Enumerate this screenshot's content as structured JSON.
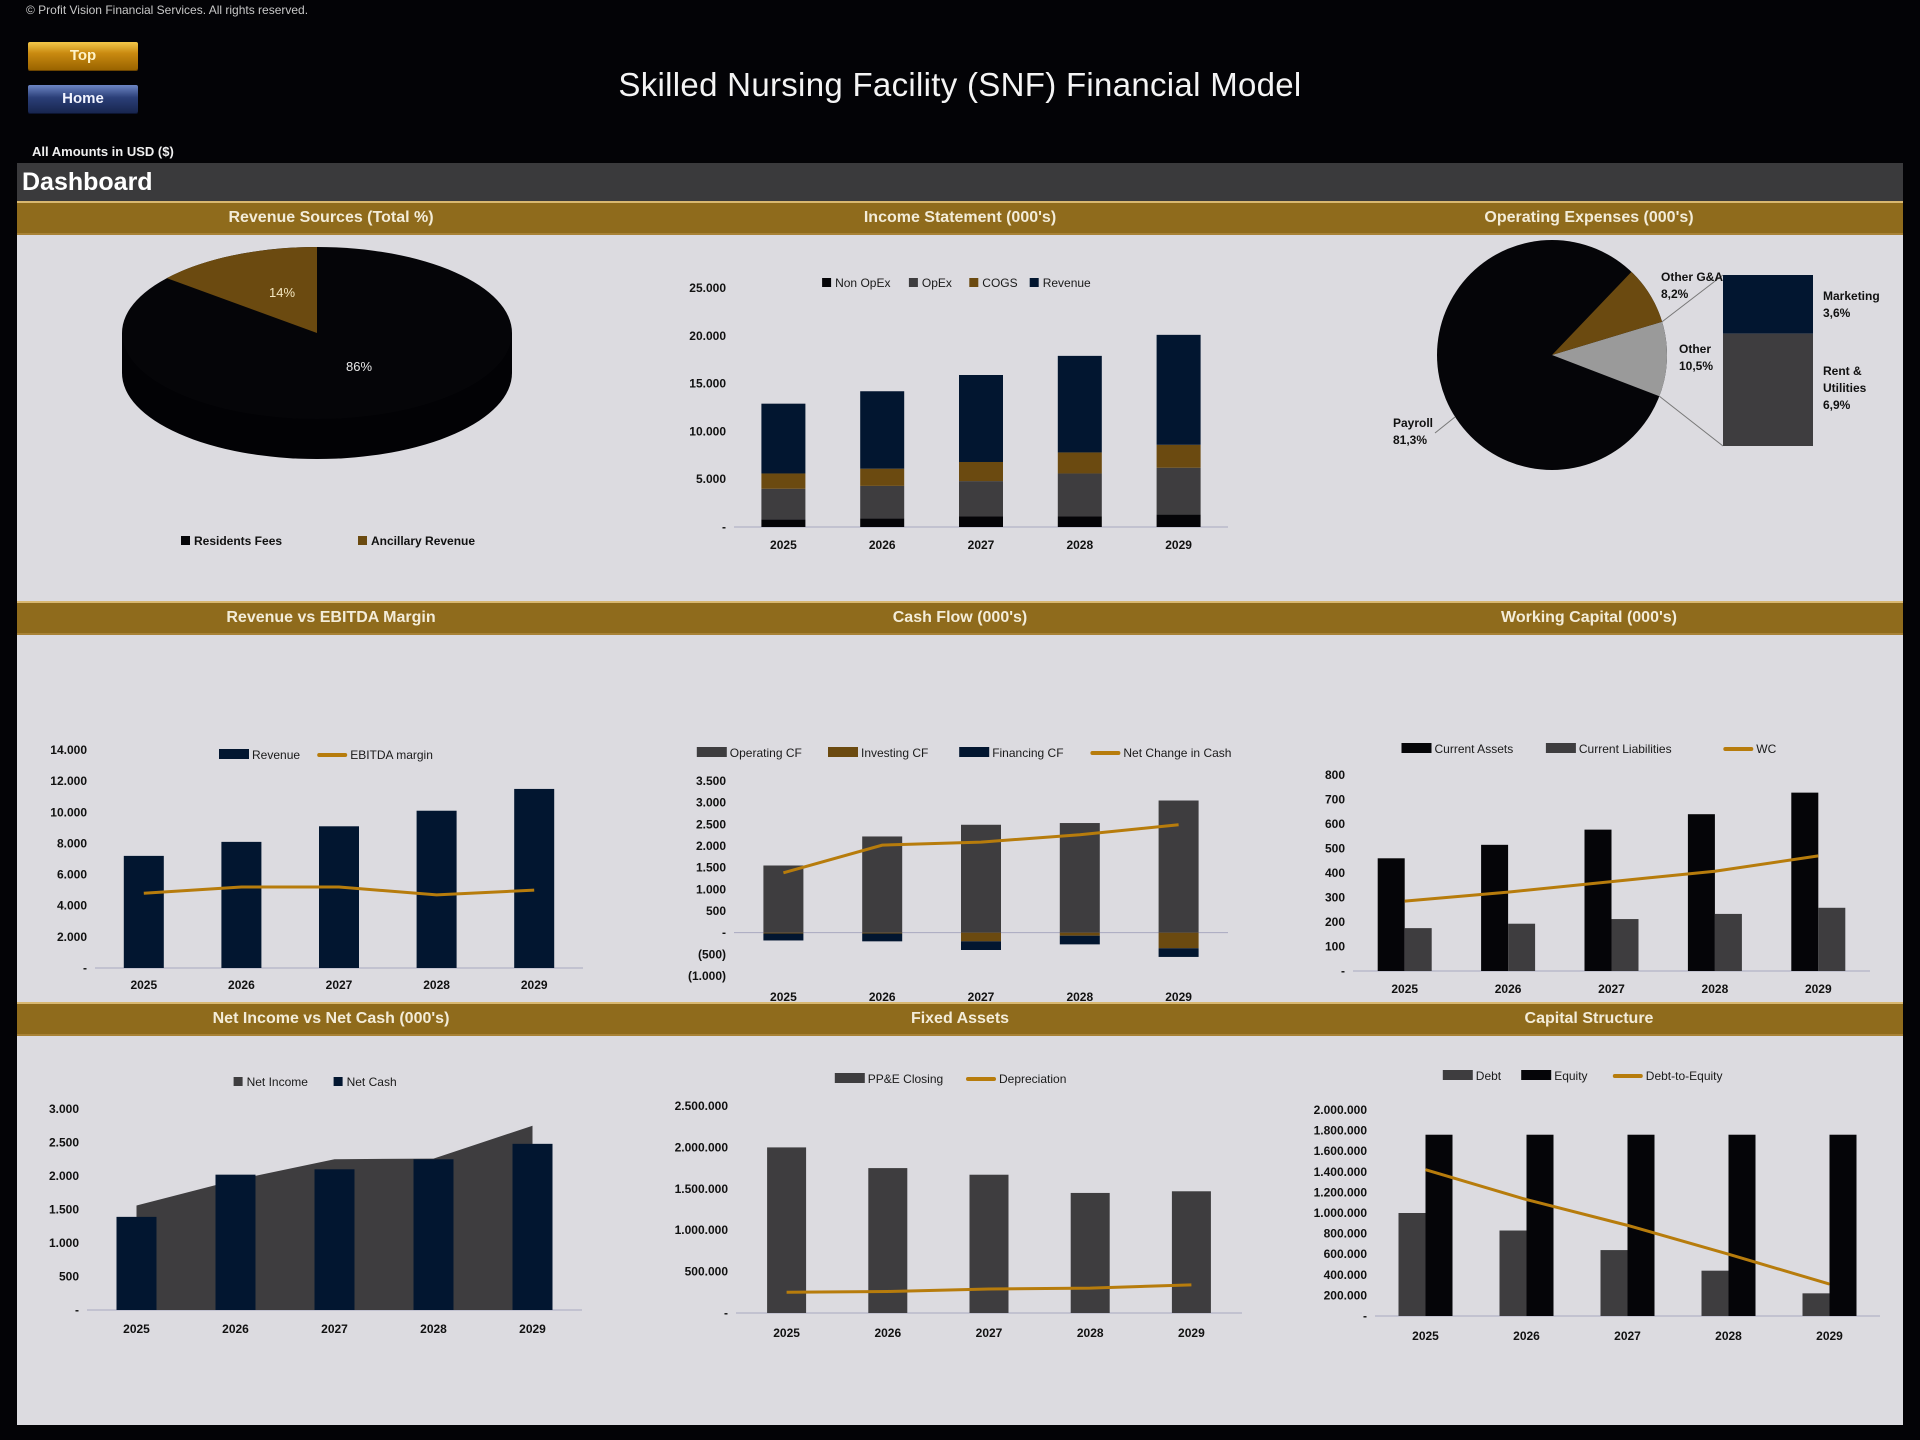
{
  "header": {
    "copyright": "© Profit Vision Financial Services. All rights reserved.",
    "title": "Skilled Nursing Facility (SNF) Financial Model",
    "units": "All Amounts in  USD ($)",
    "buttons": {
      "top": "Top",
      "home": "Home"
    },
    "section": "Dashboard"
  },
  "colors": {
    "gold_band": "#8f6b1c",
    "black": "#050508",
    "navy": "#021630",
    "dark_gray": "#3e3d3f",
    "brown": "#6b4a10",
    "gold_line": "#b77c0c",
    "light_gray": "#9a9a9a",
    "panel_bg": "#dcdbe0"
  },
  "bands": [
    [
      "Revenue Sources (Total %)",
      "Income Statement (000's)",
      "Operating Expenses (000's)"
    ],
    [
      "Revenue vs EBITDA Margin",
      "Cash Flow (000's)",
      "Working Capital (000's)"
    ],
    [
      "Net Income vs Net Cash (000's)",
      "Fixed Assets",
      "Capital Structure"
    ]
  ],
  "chart_data": [
    {
      "id": "revenue_sources",
      "type": "pie",
      "title": "Revenue Sources (Total %)",
      "categories": [
        "Residents Fees",
        "Ancillary Revenue"
      ],
      "values": [
        86,
        14
      ],
      "labels": [
        "86%",
        "14%"
      ],
      "legend": [
        "Residents Fees",
        "Ancillary Revenue"
      ],
      "legend_position": "bottom"
    },
    {
      "id": "income_statement",
      "type": "bar",
      "stacked": true,
      "title": "Income Statement (000's)",
      "categories": [
        "2025",
        "2026",
        "2027",
        "2028",
        "2029"
      ],
      "series": [
        {
          "name": "Non OpEx",
          "values": [
            800,
            900,
            1100,
            1100,
            1300
          ]
        },
        {
          "name": "OpEx",
          "values": [
            3200,
            3400,
            3700,
            4500,
            4900
          ]
        },
        {
          "name": "COGS",
          "values": [
            1600,
            1800,
            2000,
            2200,
            2400
          ]
        },
        {
          "name": "Revenue",
          "values": [
            7300,
            8100,
            9100,
            10100,
            11500
          ]
        }
      ],
      "yticks": [
        "-",
        "5.000",
        "10.000",
        "15.000",
        "20.000",
        "25.000"
      ],
      "ylim": [
        0,
        25000
      ],
      "legend_position": "top"
    },
    {
      "id": "operating_expenses",
      "type": "pie",
      "subtype": "bar-of-pie",
      "title": "Operating Expenses (000's)",
      "categories": [
        "Payroll",
        "Other G&A",
        "Other"
      ],
      "values": [
        81.3,
        8.2,
        10.5
      ],
      "labels": [
        "Payroll\n81,3%",
        "Other G&A\n8,2%",
        "Other\n10,5%"
      ],
      "breakdown": {
        "categories": [
          "Marketing",
          "Rent & Utilities"
        ],
        "values": [
          3.6,
          6.9
        ],
        "labels": [
          "Marketing\n3,6%",
          "Rent &\nUtilities\n6,9%"
        ]
      }
    },
    {
      "id": "revenue_vs_ebitda",
      "type": "bar",
      "title": "Revenue vs EBITDA Margin",
      "categories": [
        "2025",
        "2026",
        "2027",
        "2028",
        "2029"
      ],
      "series": [
        {
          "name": "Revenue",
          "type": "bar",
          "values": [
            7200,
            8100,
            9100,
            10100,
            11500
          ]
        },
        {
          "name": "EBITDA margin",
          "type": "line",
          "values": [
            4800,
            5200,
            5200,
            4700,
            5000
          ]
        }
      ],
      "yticks": [
        "-",
        "2.000",
        "4.000",
        "6.000",
        "8.000",
        "10.000",
        "12.000",
        "14.000"
      ],
      "ylim": [
        0,
        14000
      ],
      "legend_position": "top"
    },
    {
      "id": "cash_flow",
      "type": "bar",
      "stacked": true,
      "title": "Cash Flow (000's)",
      "categories": [
        "2025",
        "2026",
        "2027",
        "2028",
        "2029"
      ],
      "series": [
        {
          "name": "Operating CF",
          "values": [
            1550,
            2220,
            2490,
            2530,
            3050
          ]
        },
        {
          "name": "Investing CF",
          "values": [
            -20,
            -20,
            -200,
            -70,
            -360
          ]
        },
        {
          "name": "Financing CF",
          "values": [
            -160,
            -180,
            -200,
            -200,
            -200
          ]
        },
        {
          "name": "Net Change in Cash",
          "type": "line",
          "values": [
            1380,
            2020,
            2090,
            2260,
            2490
          ]
        }
      ],
      "yticks": [
        "(1.000)",
        "(500)",
        "-",
        "500",
        "1.000",
        "1.500",
        "2.000",
        "2.500",
        "3.000",
        "3.500"
      ],
      "ylim": [
        -1000,
        3500
      ],
      "legend_position": "top"
    },
    {
      "id": "working_capital",
      "type": "bar",
      "title": "Working Capital (000's)",
      "categories": [
        "2025",
        "2026",
        "2027",
        "2028",
        "2029"
      ],
      "series": [
        {
          "name": "Current Assets",
          "values": [
            460,
            515,
            577,
            640,
            728
          ]
        },
        {
          "name": "Current Liabilities",
          "values": [
            175,
            193,
            212,
            233,
            258
          ]
        },
        {
          "name": "WC",
          "type": "line",
          "values": [
            285,
            322,
            365,
            407,
            470
          ]
        }
      ],
      "yticks": [
        "-",
        "100",
        "200",
        "300",
        "400",
        "500",
        "600",
        "700",
        "800"
      ],
      "ylim": [
        0,
        800
      ],
      "legend_position": "top"
    },
    {
      "id": "net_income_vs_cash",
      "type": "bar",
      "title": "Net Income vs Net Cash (000's)",
      "categories": [
        "2025",
        "2026",
        "2027",
        "2028",
        "2029"
      ],
      "series": [
        {
          "name": "Net Income",
          "type": "area",
          "values": [
            1560,
            1940,
            2250,
            2260,
            2750
          ]
        },
        {
          "name": "Net Cash",
          "type": "bar",
          "values": [
            1390,
            2020,
            2100,
            2250,
            2480
          ]
        }
      ],
      "yticks": [
        "-",
        "500",
        "1.000",
        "1.500",
        "2.000",
        "2.500",
        "3.000"
      ],
      "ylim": [
        0,
        3000
      ],
      "legend_position": "top"
    },
    {
      "id": "fixed_assets",
      "type": "bar",
      "title": "Fixed Assets",
      "categories": [
        "2025",
        "2026",
        "2027",
        "2028",
        "2029"
      ],
      "series": [
        {
          "name": "PP&E Closing",
          "type": "bar",
          "values": [
            2000000,
            1750000,
            1670000,
            1450000,
            1470000
          ]
        },
        {
          "name": "Depreciation",
          "type": "line",
          "values": [
            250000,
            260000,
            290000,
            300000,
            340000
          ]
        }
      ],
      "yticks": [
        "-",
        "500.000",
        "1.000.000",
        "1.500.000",
        "2.000.000",
        "2.500.000"
      ],
      "ylim": [
        0,
        2500000
      ],
      "legend_position": "top"
    },
    {
      "id": "capital_structure",
      "type": "bar",
      "title": "Capital Structure",
      "categories": [
        "2025",
        "2026",
        "2027",
        "2028",
        "2029"
      ],
      "series": [
        {
          "name": "Debt",
          "values": [
            1000000,
            830000,
            640000,
            440000,
            220000
          ]
        },
        {
          "name": "Equity",
          "values": [
            1760000,
            1760000,
            1760000,
            1760000,
            1760000
          ]
        },
        {
          "name": "Debt-to-Equity",
          "type": "line",
          "values": [
            1420000,
            1130000,
            880000,
            600000,
            310000
          ]
        }
      ],
      "yticks": [
        "-",
        "200.000",
        "400.000",
        "600.000",
        "800.000",
        "1.000.000",
        "1.200.000",
        "1.400.000",
        "1.600.000",
        "1.800.000",
        "2.000.000"
      ],
      "ylim": [
        0,
        2000000
      ],
      "legend_position": "top"
    }
  ]
}
